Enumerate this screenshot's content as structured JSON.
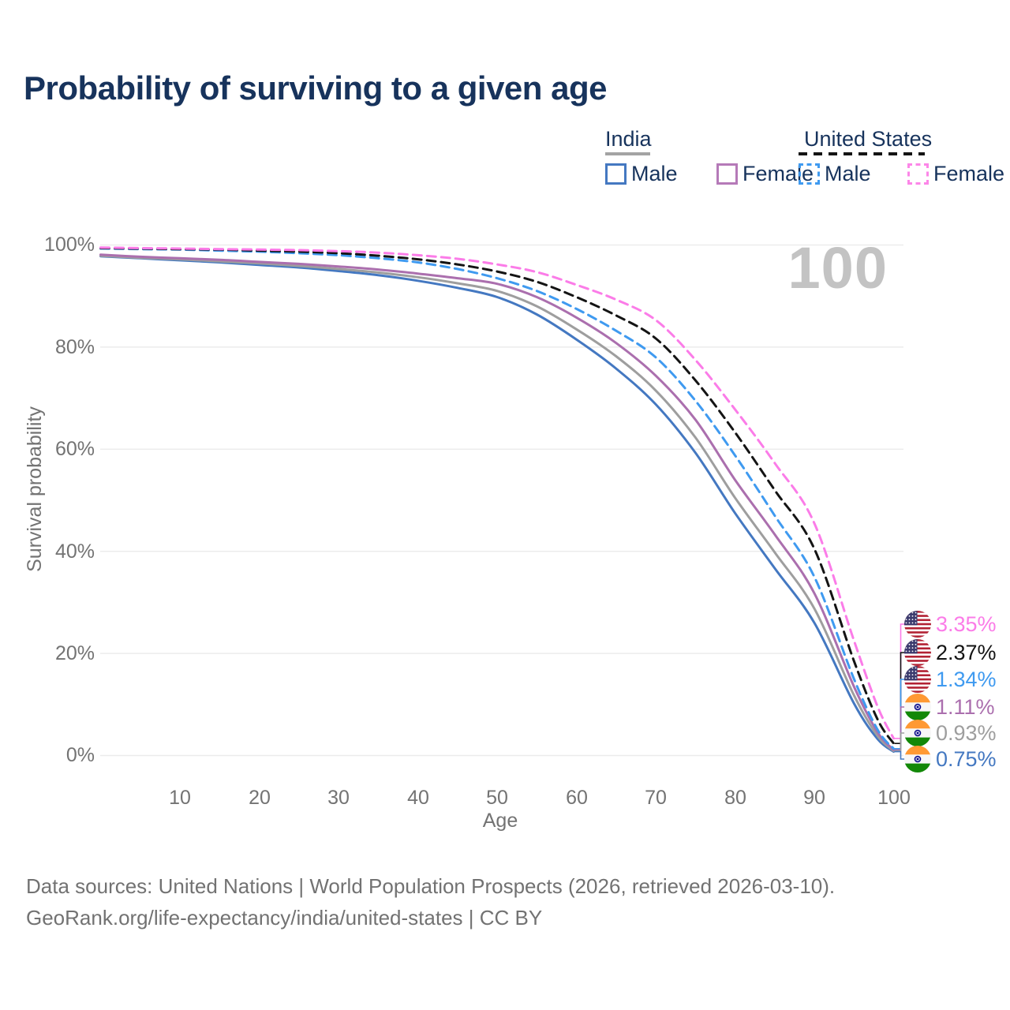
{
  "title": "Probability of surviving to a given age",
  "watermark_age": "100",
  "legend": {
    "groups": [
      {
        "title": "India",
        "line_style": "solid",
        "underline_color": "#a3a3a3",
        "items": [
          {
            "label": "Male",
            "color": "#4478c1"
          },
          {
            "label": "Female",
            "color": "#b57ab8"
          }
        ]
      },
      {
        "title": "United States",
        "line_style": "dashed",
        "underline_color": "#141414",
        "items": [
          {
            "label": "Male",
            "color": "#3f9af0"
          },
          {
            "label": "Female",
            "color": "#fc86e8"
          }
        ]
      }
    ]
  },
  "y_axis": {
    "label": "Survival probability",
    "ticks": [
      "100%",
      "80%",
      "60%",
      "40%",
      "20%",
      "0%"
    ]
  },
  "x_axis": {
    "label": "Age",
    "ticks": [
      "10",
      "20",
      "30",
      "40",
      "50",
      "60",
      "70",
      "80",
      "90",
      "100"
    ]
  },
  "footer": {
    "line1": "Data sources: United Nations | World Population Prospects (2026, retrieved 2026-03-10).",
    "line2": "GeoRank.org/life-expectancy/india/united-states | CC BY"
  },
  "chart_data": {
    "type": "line",
    "title": "Probability of surviving to a given age",
    "xlabel": "Age",
    "ylabel": "Survival probability",
    "xlim": [
      0,
      100
    ],
    "ylim": [
      0,
      100
    ],
    "grid": "horizontal",
    "highlighted_age": 100,
    "x": [
      0,
      5,
      10,
      15,
      20,
      25,
      30,
      35,
      40,
      45,
      50,
      55,
      60,
      65,
      70,
      75,
      80,
      85,
      90,
      95,
      98,
      100
    ],
    "series": [
      {
        "id": "us-female",
        "name": "United States Female",
        "country": "united-states",
        "sex": "female",
        "style": "dashed",
        "color": "#fb7ce8",
        "end_label": "3.35%",
        "values": [
          99.5,
          99.4,
          99.3,
          99.2,
          99.1,
          99.0,
          98.8,
          98.5,
          98.0,
          97.3,
          96.2,
          94.7,
          92.2,
          89.3,
          85.3,
          77.5,
          67.8,
          57.3,
          45.5,
          22.5,
          9.5,
          3.35
        ]
      },
      {
        "id": "us-both",
        "name": "United States",
        "country": "united-states",
        "sex": "both",
        "style": "dashed",
        "color": "#141414",
        "end_label": "2.37%",
        "values": [
          99.4,
          99.3,
          99.2,
          99.1,
          98.9,
          98.7,
          98.4,
          97.9,
          97.2,
          96.2,
          94.8,
          92.8,
          89.8,
          86.2,
          81.7,
          73.5,
          63.3,
          52.0,
          40.5,
          18.5,
          7.0,
          2.37
        ]
      },
      {
        "id": "us-male",
        "name": "United States Male",
        "country": "united-states",
        "sex": "male",
        "style": "dashed",
        "color": "#3f9af0",
        "end_label": "1.34%",
        "values": [
          99.3,
          99.2,
          99.1,
          98.9,
          98.7,
          98.4,
          98.0,
          97.4,
          96.6,
          95.3,
          93.5,
          91.0,
          87.5,
          83.2,
          78.0,
          69.5,
          58.8,
          47.0,
          35.0,
          15.0,
          5.0,
          1.34
        ]
      },
      {
        "id": "india-female",
        "name": "India Female",
        "country": "india",
        "sex": "female",
        "style": "solid",
        "color": "#ab6fae",
        "end_label": "1.11%",
        "values": [
          98.1,
          97.7,
          97.4,
          97.1,
          96.7,
          96.3,
          95.8,
          95.2,
          94.4,
          93.5,
          92.4,
          89.8,
          85.8,
          80.8,
          74.4,
          65.8,
          54.0,
          43.3,
          31.8,
          13.5,
          4.5,
          1.11
        ]
      },
      {
        "id": "india-both",
        "name": "India",
        "country": "india",
        "sex": "both",
        "style": "solid",
        "color": "#9e9e9e",
        "end_label": "0.93%",
        "values": [
          97.9,
          97.5,
          97.2,
          96.8,
          96.4,
          95.9,
          95.3,
          94.6,
          93.7,
          92.5,
          91.0,
          88.0,
          83.5,
          78.2,
          71.5,
          62.3,
          50.5,
          39.8,
          28.8,
          11.8,
          3.8,
          0.93
        ]
      },
      {
        "id": "india-male",
        "name": "India Male",
        "country": "india",
        "sex": "male",
        "style": "solid",
        "color": "#4478c1",
        "end_label": "0.75%",
        "values": [
          97.8,
          97.4,
          97.0,
          96.6,
          96.1,
          95.6,
          94.9,
          94.1,
          93.0,
          91.6,
          89.8,
          86.4,
          81.5,
          75.8,
          68.8,
          59.3,
          47.5,
          36.7,
          26.0,
          10.2,
          3.2,
          0.75
        ]
      }
    ]
  }
}
